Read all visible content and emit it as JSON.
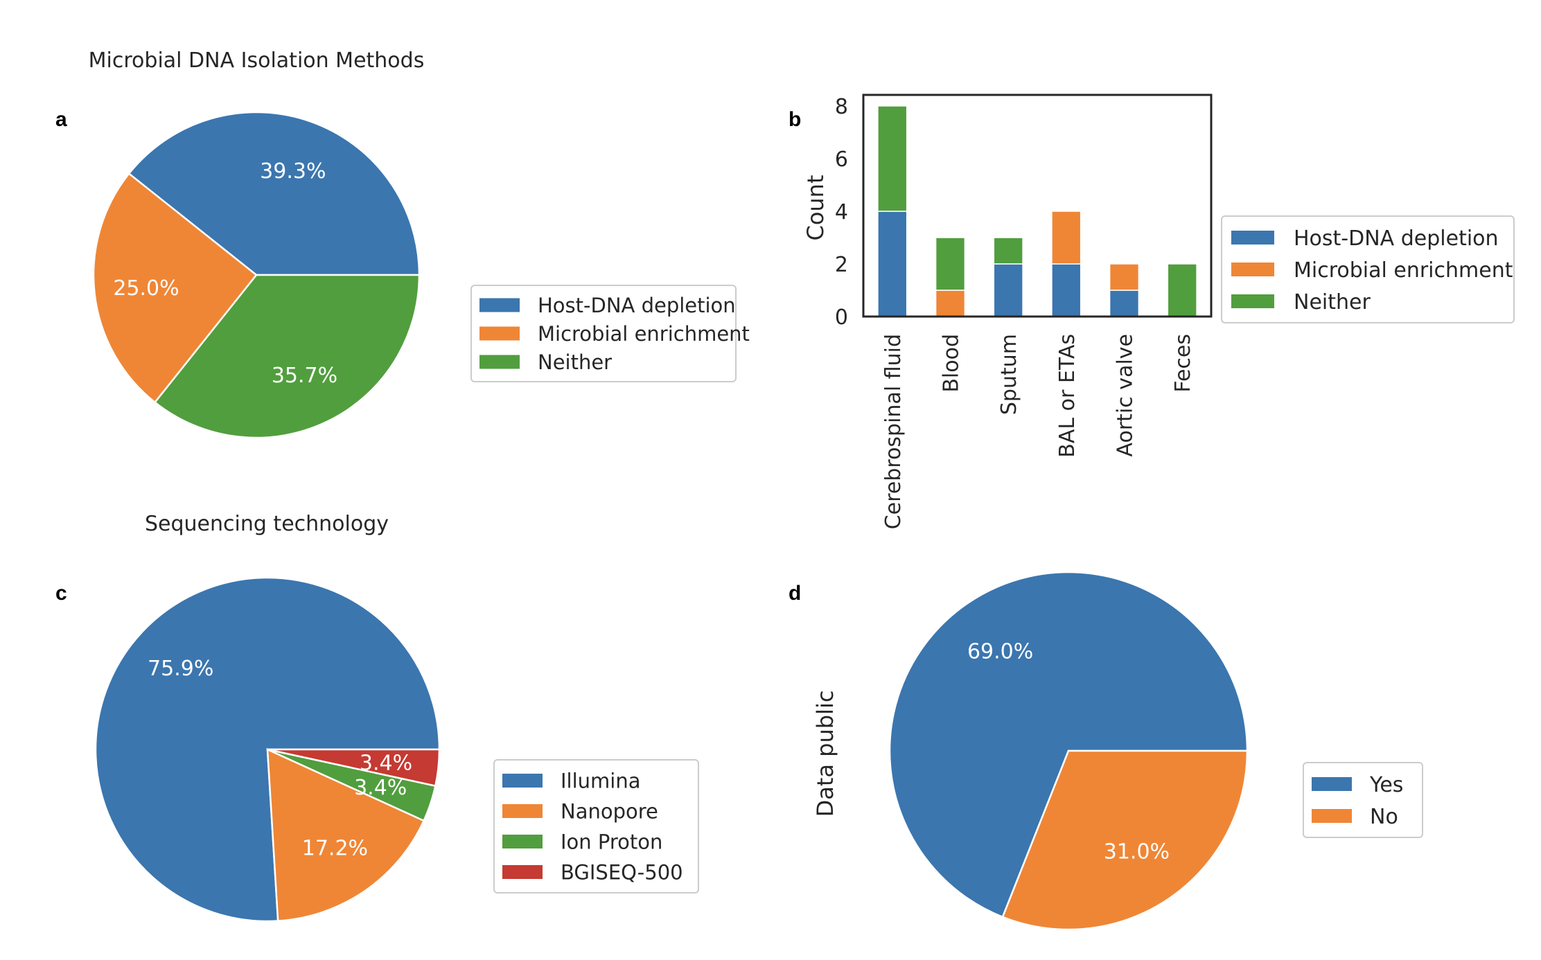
{
  "panels": {
    "a": {
      "letter": "a"
    },
    "b": {
      "letter": "b"
    },
    "c": {
      "letter": "c"
    },
    "d": {
      "letter": "d"
    }
  },
  "chart_data": [
    {
      "id": "a",
      "type": "pie",
      "title": "Microbial DNA Isolation Methods",
      "labels": [
        "Host-DNA depletion",
        "Microbial enrichment",
        "Neither"
      ],
      "values": [
        39.3,
        25.0,
        35.7
      ],
      "pct_labels": [
        "39.3%",
        "25.0%",
        "35.7%"
      ],
      "colors": [
        "#3b76af",
        "#ef8636",
        "#519e3e"
      ],
      "start_angle_deg": 0,
      "direction": "counterclockwise",
      "ylabel": "",
      "legend_position": "right"
    },
    {
      "id": "b",
      "type": "bar",
      "stacked": true,
      "title": "",
      "categories": [
        "Cerebrospinal fluid",
        "Blood",
        "Sputum",
        "BAL or ETAs",
        "Aortic valve",
        "Feces"
      ],
      "series": [
        {
          "name": "Host-DNA depletion",
          "values": [
            4,
            0,
            2,
            2,
            1,
            0
          ],
          "color": "#3b76af"
        },
        {
          "name": "Microbial enrichment",
          "values": [
            0,
            1,
            0,
            2,
            1,
            0
          ],
          "color": "#ef8636"
        },
        {
          "name": "Neither",
          "values": [
            4,
            2,
            1,
            0,
            0,
            2
          ],
          "color": "#519e3e"
        }
      ],
      "xlabel": "",
      "ylabel": "Count",
      "ylim": [
        0,
        8
      ],
      "yticks": [
        "0",
        "2",
        "4",
        "6",
        "8"
      ],
      "grid": false,
      "legend_position": "right"
    },
    {
      "id": "c",
      "type": "pie",
      "title": "Sequencing technology",
      "labels": [
        "Illumina",
        "Nanopore",
        "Ion Proton",
        "BGISEQ-500"
      ],
      "values": [
        75.9,
        17.2,
        3.4,
        3.4
      ],
      "pct_labels": [
        "75.9%",
        "17.2%",
        "3.4%",
        "3.4%"
      ],
      "colors": [
        "#3b76af",
        "#ef8636",
        "#519e3e",
        "#c53a32"
      ],
      "start_angle_deg": 0,
      "direction": "counterclockwise",
      "ylabel": "",
      "legend_position": "right"
    },
    {
      "id": "d",
      "type": "pie",
      "title": "",
      "labels": [
        "Yes",
        "No"
      ],
      "values": [
        69.0,
        31.0
      ],
      "pct_labels": [
        "69.0%",
        "31.0%"
      ],
      "colors": [
        "#3b76af",
        "#ef8636"
      ],
      "start_angle_deg": 0,
      "direction": "counterclockwise",
      "ylabel": "Data public",
      "legend_position": "right"
    }
  ]
}
